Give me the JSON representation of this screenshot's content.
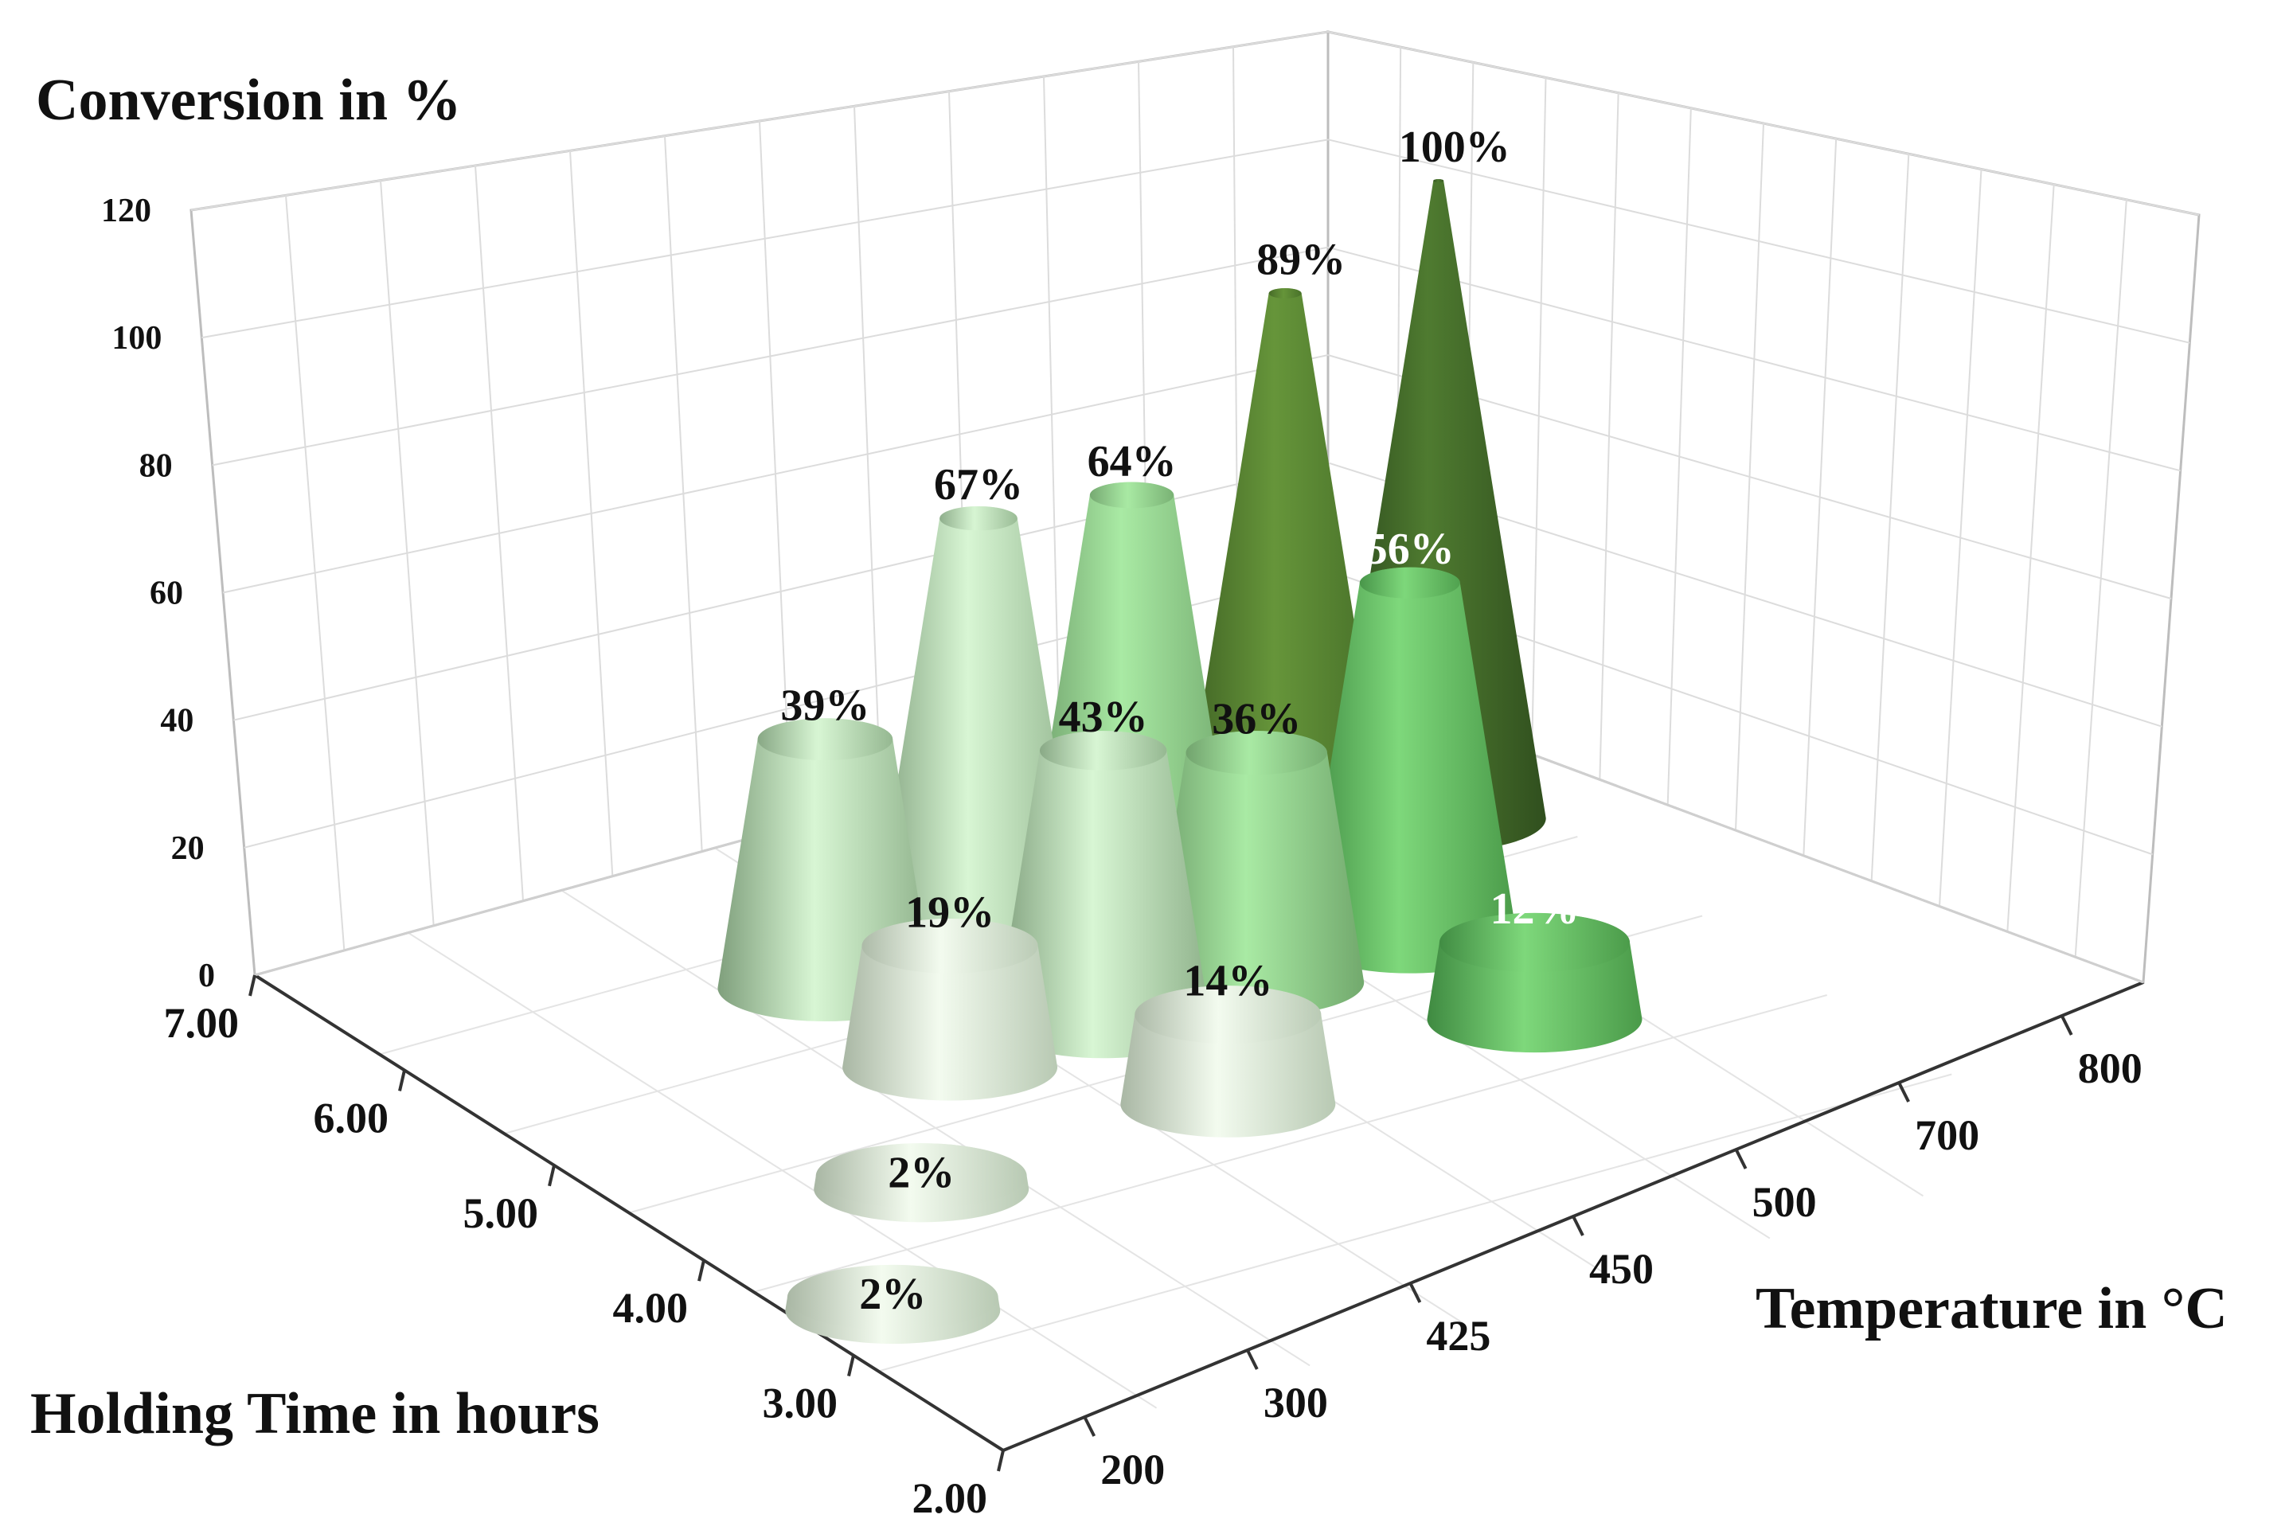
{
  "chart_data": {
    "type": "bar",
    "subtype": "3d-cone-cylinder",
    "zlabel": "Conversion in %",
    "xlabel": "Temperature in °C",
    "ylabel": "Holding Time in hours",
    "z_ticks": [
      "0",
      "20",
      "40",
      "60",
      "80",
      "100",
      "120"
    ],
    "zlim": [
      0,
      120
    ],
    "temperature_ticks": [
      "200",
      "300",
      "425",
      "450",
      "500",
      "700",
      "800"
    ],
    "time_ticks": [
      "2.00",
      "3.00",
      "4.00",
      "5.00",
      "6.00",
      "7.00"
    ],
    "grid": true,
    "points": [
      {
        "temperature": "200",
        "time": "3.00",
        "value": 2,
        "label": "2%"
      },
      {
        "temperature": "300",
        "time": "4.00",
        "value": 2,
        "label": "2%"
      },
      {
        "temperature": "425",
        "time": "6.00",
        "value": 39,
        "label": "39%"
      },
      {
        "temperature": "425",
        "time": "5.00",
        "value": 19,
        "label": "19%"
      },
      {
        "temperature": "450",
        "time": "6.00",
        "value": 67,
        "label": "67%"
      },
      {
        "temperature": "450",
        "time": "5.00",
        "value": 43,
        "label": "43%"
      },
      {
        "temperature": "450",
        "time": "4.00",
        "value": 14,
        "label": "14%"
      },
      {
        "temperature": "500",
        "time": "5.00",
        "value": 36,
        "label": "36%"
      },
      {
        "temperature": "500",
        "time": "6.00",
        "value": 64,
        "label": "64%"
      },
      {
        "temperature": "700",
        "time": "6.00",
        "value": 89,
        "label": "89%"
      },
      {
        "temperature": "700",
        "time": "5.00",
        "value": 56,
        "label": "56%"
      },
      {
        "temperature": "700",
        "time": "4.00",
        "value": 12,
        "label": "12%"
      },
      {
        "temperature": "800",
        "time": "6.00",
        "value": 100,
        "label": "100%"
      }
    ]
  }
}
